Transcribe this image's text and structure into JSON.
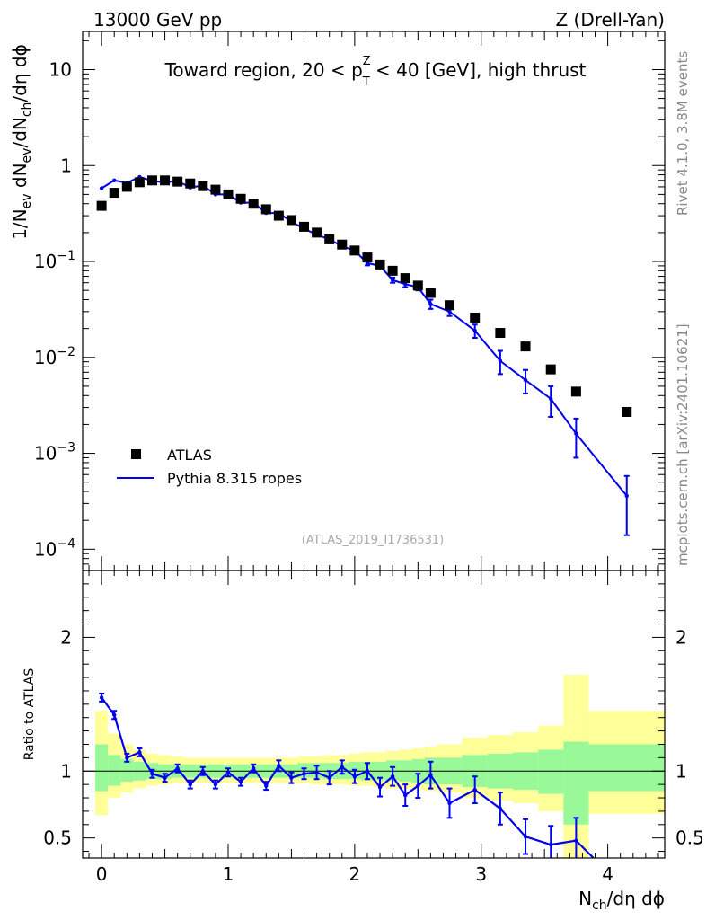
{
  "header": {
    "left": "13000 GeV pp",
    "right": "Z (Drell-Yan)"
  },
  "side_labels": {
    "rivet": "Rivet 4.1.0,  3.8M events",
    "source": "mcplots.cern.ch [arXiv:2401.10621]"
  },
  "watermark": "(ATLAS_2019_I1736531)",
  "colors": {
    "data": "#000000",
    "mc": "#0000ee",
    "band_inner": "#99f999",
    "band_outer": "#ffff99"
  },
  "chart_data": [
    {
      "type": "scatter",
      "panel": "main",
      "title": "Toward region, 20 < pTZ < 40 [GeV], high thrust",
      "title_parts": {
        "pre": "Toward region, 20 < p",
        "sup": "Z",
        "sub": "T",
        "post": " < 40 [GeV], high thrust"
      },
      "ylabel": "1/Nev dNev/dNch/dη dϕ",
      "ylabel_parts": [
        "1/N",
        "ev",
        " dN",
        "ev",
        "/dN",
        "ch",
        "/dη dϕ"
      ],
      "yscale": "log",
      "xlim": [
        -0.15,
        4.45
      ],
      "ylim": [
        6e-05,
        25
      ],
      "y_ticks": [
        {
          "value": 10,
          "label": "10"
        },
        {
          "value": 1,
          "label": "1"
        },
        {
          "value": 0.1,
          "base": "10",
          "exp": "−1"
        },
        {
          "value": 0.01,
          "base": "10",
          "exp": "−2"
        },
        {
          "value": 0.001,
          "base": "10",
          "exp": "−3"
        },
        {
          "value": 0.0001,
          "base": "10",
          "exp": "−4"
        }
      ],
      "legend": [
        {
          "label": "ATLAS",
          "marker": "square"
        },
        {
          "label": "Pythia 8.315 ropes",
          "marker": "line"
        }
      ],
      "legend_position": "middle-left",
      "series": [
        {
          "name": "ATLAS",
          "x": [
            0.0,
            0.1,
            0.2,
            0.3,
            0.4,
            0.5,
            0.6,
            0.7,
            0.8,
            0.9,
            1.0,
            1.1,
            1.2,
            1.3,
            1.4,
            1.5,
            1.6,
            1.7,
            1.8,
            1.9,
            2.0,
            2.1,
            2.2,
            2.3,
            2.4,
            2.5,
            2.6,
            2.75,
            2.95,
            3.15,
            3.35,
            3.55,
            3.75,
            4.15
          ],
          "y": [
            0.38,
            0.52,
            0.6,
            0.67,
            0.7,
            0.7,
            0.68,
            0.65,
            0.61,
            0.56,
            0.5,
            0.45,
            0.4,
            0.35,
            0.3,
            0.27,
            0.23,
            0.2,
            0.17,
            0.15,
            0.13,
            0.11,
            0.093,
            0.08,
            0.067,
            0.056,
            0.047,
            0.035,
            0.026,
            0.018,
            0.013,
            0.0075,
            0.0044,
            0.0027
          ]
        },
        {
          "name": "Pythia 8.315 ropes",
          "x": [
            0.0,
            0.1,
            0.2,
            0.3,
            0.4,
            0.5,
            0.6,
            0.7,
            0.8,
            0.9,
            1.0,
            1.1,
            1.2,
            1.3,
            1.4,
            1.5,
            1.6,
            1.7,
            1.8,
            1.9,
            2.0,
            2.1,
            2.2,
            2.3,
            2.4,
            2.5,
            2.6,
            2.75,
            2.95,
            3.15,
            3.35,
            3.55,
            3.75,
            4.15
          ],
          "y": [
            0.58,
            0.7,
            0.66,
            0.76,
            0.69,
            0.67,
            0.69,
            0.59,
            0.62,
            0.5,
            0.5,
            0.41,
            0.41,
            0.32,
            0.32,
            0.26,
            0.22,
            0.19,
            0.17,
            0.144,
            0.13,
            0.096,
            0.09,
            0.064,
            0.058,
            0.054,
            0.036,
            0.03,
            0.019,
            0.0092,
            0.0058,
            0.0037,
            0.0016,
            0.00036
          ],
          "err": [
            0.01,
            0.01,
            0.01,
            0.01,
            0.01,
            0.01,
            0.01,
            0.01,
            0.01,
            0.01,
            0.01,
            0.01,
            0.01,
            0.01,
            0.01,
            0.01,
            0.005,
            0.005,
            0.005,
            0.005,
            0.005,
            0.005,
            0.005,
            0.004,
            0.004,
            0.004,
            0.004,
            0.003,
            0.003,
            0.0025,
            0.0016,
            0.0013,
            0.0007,
            0.00022
          ]
        }
      ]
    },
    {
      "type": "line",
      "panel": "ratio",
      "ylabel": "Ratio to ATLAS",
      "xlabel": "Nch/dη dϕ",
      "xlabel_parts": [
        "N",
        "ch",
        "/dη dϕ"
      ],
      "xlim": [
        -0.15,
        4.45
      ],
      "ylim": [
        0.35,
        2.5
      ],
      "x_ticks": [
        0,
        1,
        2,
        3,
        4
      ],
      "y_ticks": [
        0.5,
        1,
        2
      ],
      "reference_line": 1,
      "bands": {
        "edges": [
          -0.05,
          0.05,
          0.15,
          0.25,
          0.35,
          0.45,
          0.55,
          0.65,
          0.75,
          0.85,
          0.95,
          1.05,
          1.15,
          1.25,
          1.35,
          1.45,
          1.55,
          1.65,
          1.75,
          1.85,
          1.95,
          2.05,
          2.15,
          2.25,
          2.35,
          2.45,
          2.55,
          2.65,
          2.85,
          3.05,
          3.25,
          3.45,
          3.65,
          3.85,
          4.45
        ],
        "inner_lo": [
          0.85,
          0.89,
          0.92,
          0.93,
          0.94,
          0.94,
          0.95,
          0.95,
          0.95,
          0.95,
          0.95,
          0.95,
          0.95,
          0.95,
          0.95,
          0.95,
          0.95,
          0.95,
          0.94,
          0.94,
          0.94,
          0.93,
          0.93,
          0.93,
          0.92,
          0.91,
          0.9,
          0.9,
          0.88,
          0.87,
          0.86,
          0.83,
          0.6,
          0.85
        ],
        "inner_hi": [
          1.2,
          1.12,
          1.09,
          1.07,
          1.06,
          1.05,
          1.05,
          1.05,
          1.05,
          1.05,
          1.05,
          1.05,
          1.05,
          1.05,
          1.05,
          1.05,
          1.06,
          1.06,
          1.06,
          1.06,
          1.07,
          1.07,
          1.07,
          1.08,
          1.08,
          1.09,
          1.1,
          1.1,
          1.12,
          1.13,
          1.14,
          1.16,
          1.22,
          1.2
        ],
        "outer_lo": [
          0.67,
          0.8,
          0.84,
          0.87,
          0.89,
          0.9,
          0.91,
          0.91,
          0.91,
          0.91,
          0.91,
          0.91,
          0.91,
          0.91,
          0.91,
          0.91,
          0.91,
          0.9,
          0.9,
          0.9,
          0.89,
          0.89,
          0.88,
          0.87,
          0.87,
          0.86,
          0.85,
          0.84,
          0.8,
          0.78,
          0.76,
          0.7,
          0.3,
          0.68
        ],
        "outer_hi": [
          1.45,
          1.28,
          1.2,
          1.16,
          1.13,
          1.12,
          1.11,
          1.1,
          1.1,
          1.1,
          1.1,
          1.1,
          1.1,
          1.1,
          1.1,
          1.1,
          1.11,
          1.11,
          1.12,
          1.12,
          1.13,
          1.14,
          1.14,
          1.15,
          1.16,
          1.17,
          1.18,
          1.2,
          1.25,
          1.27,
          1.29,
          1.34,
          1.72,
          1.45
        ]
      },
      "series": [
        {
          "name": "Pythia 8.315 ropes",
          "x": [
            0.0,
            0.1,
            0.2,
            0.3,
            0.4,
            0.5,
            0.6,
            0.7,
            0.8,
            0.9,
            1.0,
            1.1,
            1.2,
            1.3,
            1.4,
            1.5,
            1.6,
            1.7,
            1.8,
            1.9,
            2.0,
            2.1,
            2.2,
            2.3,
            2.4,
            2.5,
            2.6,
            2.75,
            2.95,
            3.15,
            3.35,
            3.55,
            3.75
          ],
          "y": [
            1.55,
            1.42,
            1.1,
            1.14,
            0.98,
            0.95,
            1.02,
            0.9,
            1.0,
            0.9,
            0.99,
            0.92,
            1.02,
            0.89,
            1.04,
            0.95,
            0.98,
            0.99,
            0.95,
            1.03,
            0.96,
            1.0,
            0.88,
            0.96,
            0.82,
            0.89,
            0.97,
            0.76,
            0.86,
            0.72,
            0.51,
            0.45,
            0.48
          ],
          "err": [
            0.03,
            0.03,
            0.03,
            0.03,
            0.03,
            0.03,
            0.03,
            0.03,
            0.03,
            0.03,
            0.03,
            0.03,
            0.03,
            0.03,
            0.04,
            0.04,
            0.04,
            0.05,
            0.05,
            0.05,
            0.05,
            0.06,
            0.07,
            0.07,
            0.08,
            0.09,
            0.1,
            0.11,
            0.1,
            0.12,
            0.13,
            0.14,
            0.17
          ]
        }
      ]
    }
  ]
}
